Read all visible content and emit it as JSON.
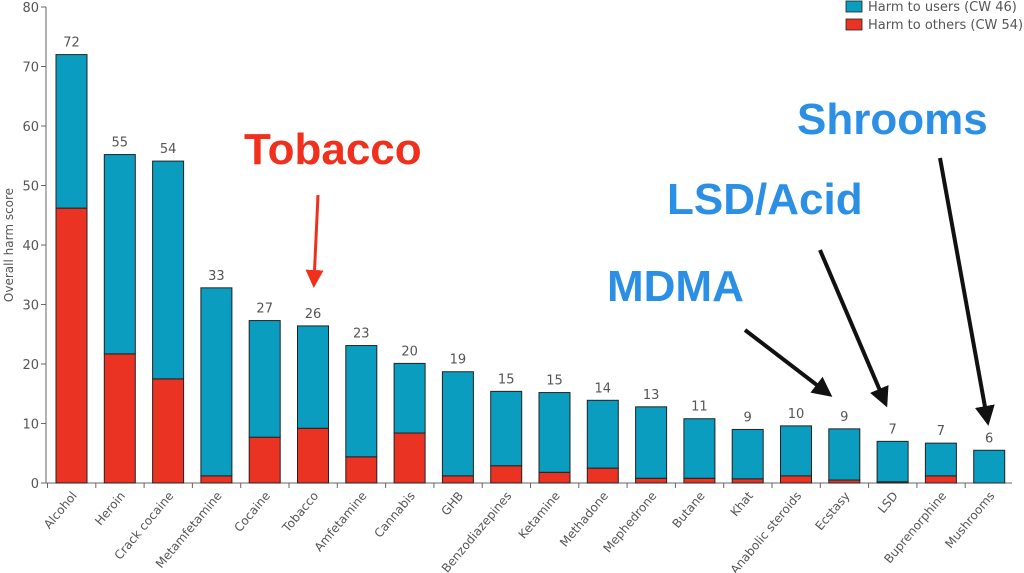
{
  "chart_data": {
    "type": "bar",
    "stacked": true,
    "title": "",
    "xlabel": "",
    "ylabel": "Overall harm score",
    "ylim": [
      0,
      80
    ],
    "yticks": [
      0,
      10,
      20,
      30,
      40,
      50,
      60,
      70,
      80
    ],
    "legend_position": "top-right",
    "categories": [
      "Alcohol",
      "Heroin",
      "Crack cocaine",
      "Metamfetamine",
      "Cocaine",
      "Tobacco",
      "Amfetamine",
      "Cannabis",
      "GHB",
      "Benzodiazepines",
      "Ketamine",
      "Methadone",
      "Mephedrone",
      "Butane",
      "Khat",
      "Anabolic steroids",
      "Ecstasy",
      "LSD",
      "Buprenorphine",
      "Mushrooms"
    ],
    "totals": [
      72,
      55.2,
      54.1,
      32.8,
      27.3,
      26.4,
      23.1,
      20.1,
      18.7,
      15.4,
      15.2,
      13.9,
      12.8,
      10.8,
      9.0,
      9.6,
      9.1,
      7.0,
      6.7,
      5.5
    ],
    "total_labels": [
      "72",
      "55",
      "54",
      "33",
      "27",
      "26",
      "23",
      "20",
      "19",
      "15",
      "15",
      "14",
      "13",
      "11",
      "9",
      "10",
      "9",
      "7",
      "7",
      "6"
    ],
    "series": [
      {
        "name": "Harm to users (CW 46)",
        "color": "#0b9dbf",
        "values": [
          25.8,
          33.5,
          36.6,
          31.6,
          19.6,
          17.2,
          18.7,
          11.7,
          17.5,
          12.5,
          13.4,
          11.4,
          12.0,
          10.0,
          8.3,
          8.4,
          8.6,
          6.8,
          5.5,
          5.5
        ]
      },
      {
        "name": "Harm to others (CW 54)",
        "color": "#ea3323",
        "values": [
          46.2,
          21.7,
          17.5,
          1.2,
          7.7,
          9.2,
          4.4,
          8.4,
          1.2,
          2.9,
          1.8,
          2.5,
          0.8,
          0.8,
          0.7,
          1.2,
          0.5,
          0.2,
          1.2,
          0.0
        ]
      }
    ],
    "annotations": [
      {
        "text": "Tobacco",
        "color": "#f0301c",
        "target": "Tobacco"
      },
      {
        "text": "MDMA",
        "color": "#2b8fe6",
        "target": "Ecstasy"
      },
      {
        "text": "LSD/Acid",
        "color": "#2b8fe6",
        "target": "LSD"
      },
      {
        "text": "Shrooms",
        "color": "#2b8fe6",
        "target": "Mushrooms"
      }
    ]
  }
}
